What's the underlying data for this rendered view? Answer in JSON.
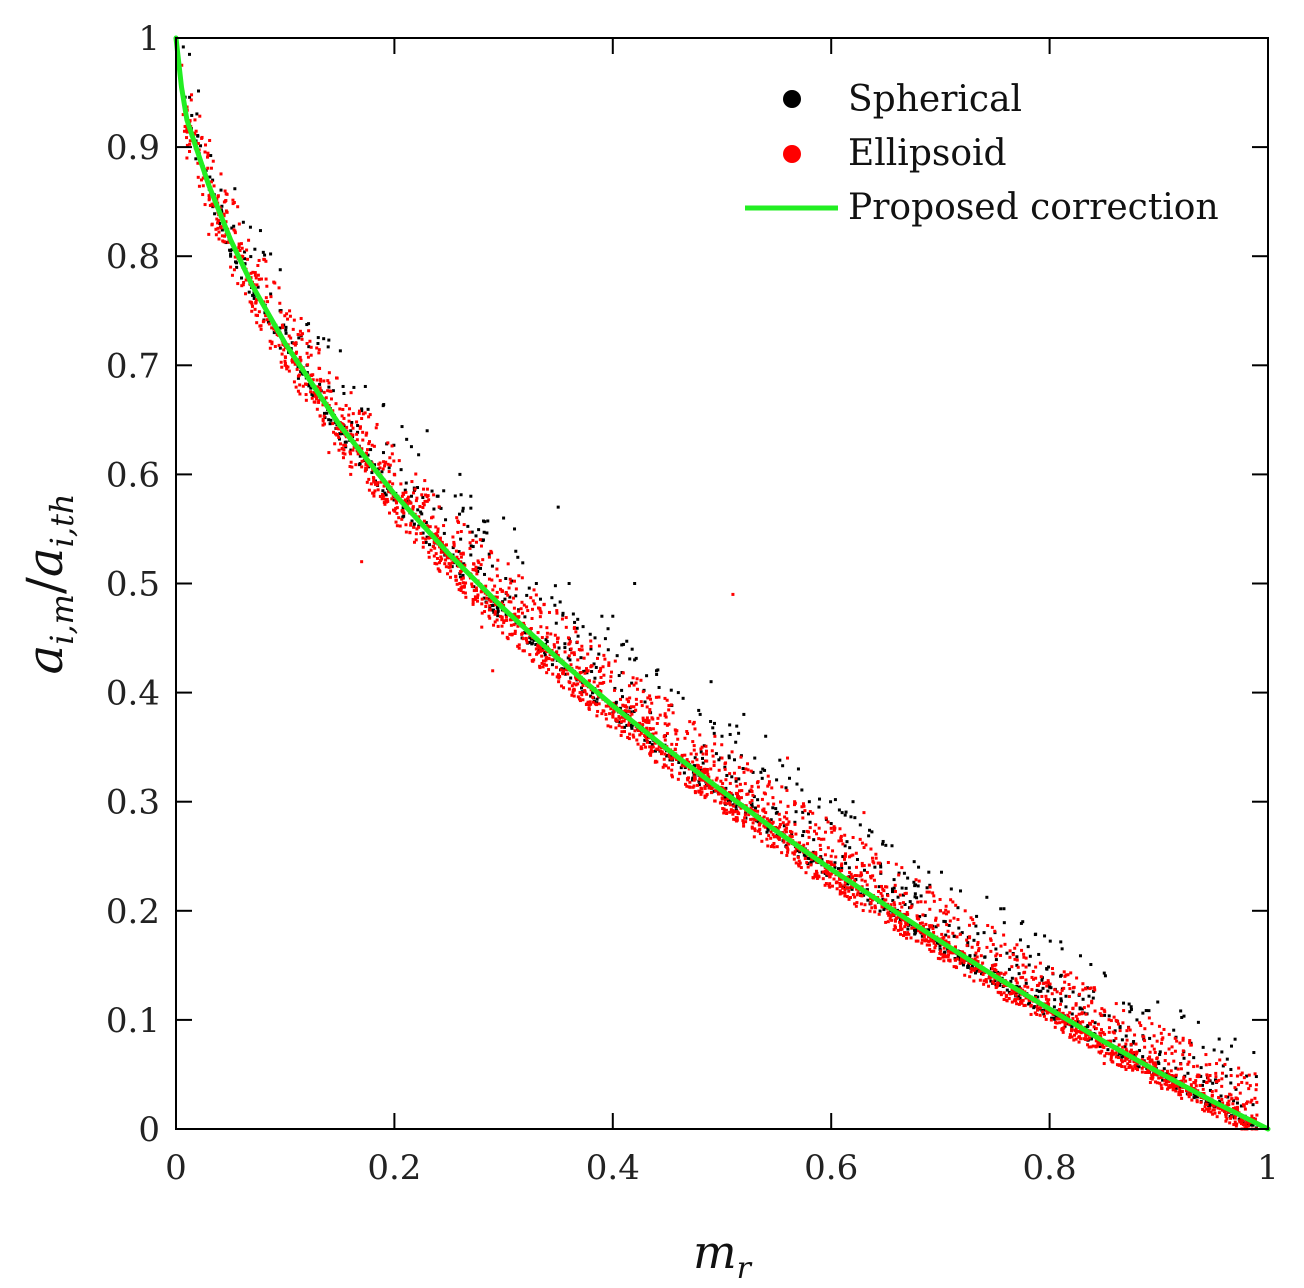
{
  "chart_data": {
    "type": "scatter",
    "title": "",
    "xlabel": {
      "base": "m",
      "sub": "r"
    },
    "ylabel": {
      "num_base": "a",
      "num_sub": "i,m",
      "sep": "/",
      "den_base": "a",
      "den_sub": "i,th"
    },
    "xlim": [
      0,
      1
    ],
    "ylim": [
      0,
      1
    ],
    "xticks": [
      0,
      0.2,
      0.4,
      0.6,
      0.8,
      1
    ],
    "xtick_labels": [
      "0",
      "0.2",
      "0.4",
      "0.6",
      "0.8",
      "1"
    ],
    "yticks": [
      0,
      0.1,
      0.2,
      0.3,
      0.4,
      0.5,
      0.6,
      0.7,
      0.8,
      0.9,
      1
    ],
    "ytick_labels": [
      "0",
      "0.1",
      "0.2",
      "0.3",
      "0.4",
      "0.5",
      "0.6",
      "0.7",
      "0.8",
      "0.9",
      "1"
    ],
    "grid": false,
    "legend_position": "top-right",
    "series": [
      {
        "name": "Spherical",
        "kind": "scatter",
        "color": "#000000",
        "points": [
          [
            0.02,
            0.91
          ],
          [
            0.04,
            0.83
          ],
          [
            0.05,
            0.8
          ],
          [
            0.06,
            0.78
          ],
          [
            0.09,
            0.73
          ],
          [
            0.11,
            0.72
          ],
          [
            0.12,
            0.7
          ],
          [
            0.13,
            0.72
          ],
          [
            0.14,
            0.68
          ],
          [
            0.16,
            0.64
          ],
          [
            0.17,
            0.66
          ],
          [
            0.19,
            0.62
          ],
          [
            0.2,
            0.6
          ],
          [
            0.23,
            0.64
          ],
          [
            0.24,
            0.58
          ],
          [
            0.26,
            0.6
          ],
          [
            0.27,
            0.58
          ],
          [
            0.28,
            0.54
          ],
          [
            0.3,
            0.56
          ],
          [
            0.31,
            0.55
          ],
          [
            0.33,
            0.5
          ],
          [
            0.35,
            0.57
          ],
          [
            0.36,
            0.5
          ],
          [
            0.38,
            0.44
          ],
          [
            0.39,
            0.47
          ],
          [
            0.4,
            0.47
          ],
          [
            0.42,
            0.5
          ],
          [
            0.42,
            0.43
          ],
          [
            0.44,
            0.42
          ],
          [
            0.46,
            0.4
          ],
          [
            0.48,
            0.38
          ],
          [
            0.49,
            0.41
          ],
          [
            0.5,
            0.36
          ],
          [
            0.52,
            0.38
          ],
          [
            0.53,
            0.34
          ],
          [
            0.54,
            0.36
          ],
          [
            0.55,
            0.32
          ],
          [
            0.57,
            0.33
          ],
          [
            0.58,
            0.3
          ],
          [
            0.6,
            0.28
          ],
          [
            0.61,
            0.29
          ],
          [
            0.62,
            0.3
          ],
          [
            0.64,
            0.24
          ],
          [
            0.65,
            0.26
          ],
          [
            0.67,
            0.23
          ],
          [
            0.68,
            0.24
          ],
          [
            0.7,
            0.2
          ],
          [
            0.71,
            0.22
          ],
          [
            0.72,
            0.18
          ],
          [
            0.74,
            0.18
          ],
          [
            0.75,
            0.18
          ],
          [
            0.77,
            0.15
          ],
          [
            0.79,
            0.16
          ],
          [
            0.8,
            0.13
          ],
          [
            0.81,
            0.14
          ],
          [
            0.83,
            0.11
          ],
          [
            0.84,
            0.12
          ],
          [
            0.86,
            0.09
          ],
          [
            0.88,
            0.1
          ],
          [
            0.9,
            0.06
          ],
          [
            0.92,
            0.06
          ],
          [
            0.94,
            0.04
          ],
          [
            0.96,
            0.02
          ]
        ],
        "band": {
          "upper_offset": 0.07,
          "lower_offset": 0.015,
          "approx_count": 1500
        }
      },
      {
        "name": "Ellipsoid",
        "kind": "scatter",
        "color": "#ff0000",
        "points": [
          [
            0.01,
            0.89
          ],
          [
            0.03,
            0.82
          ],
          [
            0.05,
            0.79
          ],
          [
            0.06,
            0.8
          ],
          [
            0.08,
            0.74
          ],
          [
            0.1,
            0.7
          ],
          [
            0.11,
            0.68
          ],
          [
            0.12,
            0.72
          ],
          [
            0.14,
            0.62
          ],
          [
            0.15,
            0.66
          ],
          [
            0.16,
            0.6
          ],
          [
            0.17,
            0.52
          ],
          [
            0.19,
            0.58
          ],
          [
            0.2,
            0.6
          ],
          [
            0.22,
            0.54
          ],
          [
            0.24,
            0.55
          ],
          [
            0.26,
            0.5
          ],
          [
            0.28,
            0.46
          ],
          [
            0.29,
            0.42
          ],
          [
            0.3,
            0.48
          ],
          [
            0.33,
            0.44
          ],
          [
            0.35,
            0.45
          ],
          [
            0.37,
            0.4
          ],
          [
            0.4,
            0.38
          ],
          [
            0.43,
            0.35
          ],
          [
            0.45,
            0.37
          ],
          [
            0.47,
            0.33
          ],
          [
            0.5,
            0.34
          ],
          [
            0.51,
            0.49
          ],
          [
            0.54,
            0.29
          ],
          [
            0.56,
            0.34
          ],
          [
            0.59,
            0.26
          ],
          [
            0.6,
            0.25
          ],
          [
            0.63,
            0.29
          ],
          [
            0.65,
            0.21
          ],
          [
            0.67,
            0.18
          ],
          [
            0.7,
            0.2
          ],
          [
            0.72,
            0.16
          ],
          [
            0.75,
            0.15
          ],
          [
            0.78,
            0.13
          ],
          [
            0.8,
            0.11
          ],
          [
            0.82,
            0.09
          ],
          [
            0.85,
            0.06
          ],
          [
            0.88,
            0.06
          ],
          [
            0.91,
            0.04
          ],
          [
            0.94,
            0.03
          ],
          [
            0.97,
            0.01
          ]
        ],
        "band": {
          "upper_offset": 0.045,
          "lower_offset": 0.03,
          "approx_count": 3500
        }
      },
      {
        "name": "Proposed correction",
        "kind": "line",
        "color": "#22ee22",
        "x": [
          0,
          0.005,
          0.01,
          0.02,
          0.03,
          0.05,
          0.07,
          0.1,
          0.15,
          0.2,
          0.25,
          0.3,
          0.35,
          0.4,
          0.45,
          0.5,
          0.55,
          0.6,
          0.65,
          0.7,
          0.75,
          0.8,
          0.85,
          0.9,
          0.95,
          1.0
        ],
        "y": [
          1.0,
          0.955,
          0.925,
          0.895,
          0.865,
          0.815,
          0.773,
          0.72,
          0.645,
          0.582,
          0.527,
          0.477,
          0.431,
          0.388,
          0.348,
          0.31,
          0.273,
          0.238,
          0.205,
          0.172,
          0.14,
          0.11,
          0.08,
          0.052,
          0.025,
          0.0
        ]
      }
    ]
  }
}
